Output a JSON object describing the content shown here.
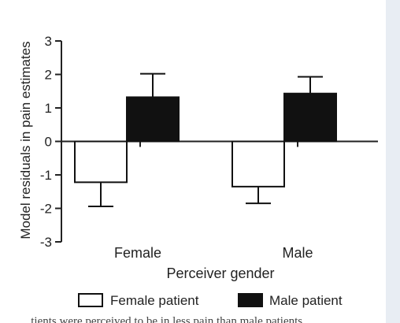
{
  "chart_data": {
    "type": "bar",
    "xlabel": "Perceiver gender",
    "ylabel": "Model residuals in pain estimates",
    "categories": [
      "Female",
      "Male"
    ],
    "ylim": [
      -3,
      3
    ],
    "yticks": [
      "3",
      "2",
      "1",
      "0",
      "-1",
      "-2",
      "-3"
    ],
    "series": [
      {
        "name": "Female patient",
        "color": "#ffffff",
        "values": [
          -1.22,
          -1.35
        ],
        "errors": [
          0.72,
          0.5
        ]
      },
      {
        "name": "Male patient",
        "color": "#111111",
        "values": [
          1.32,
          1.43
        ],
        "errors": [
          0.7,
          0.5
        ]
      }
    ],
    "grid": false,
    "legend": "bottom"
  },
  "caption_fragment": "...tients were perceived to be in less pain than male patients..."
}
